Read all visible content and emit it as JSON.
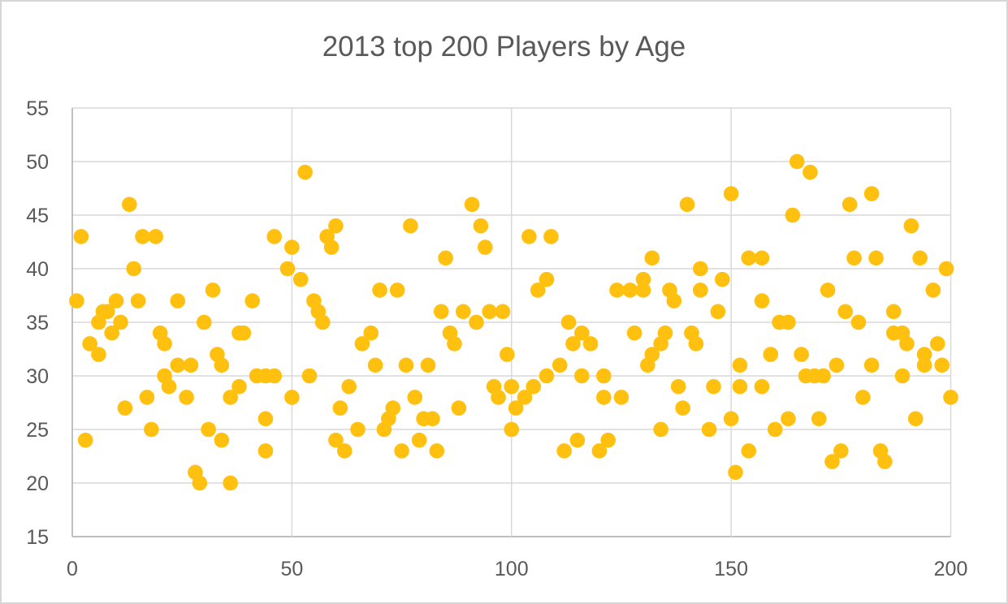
{
  "chart_data": {
    "type": "scatter",
    "title": "2013 top 200 Players by Age",
    "xlabel": "",
    "ylabel": "",
    "xlim": [
      0,
      200
    ],
    "ylim": [
      15,
      55
    ],
    "x_ticks": [
      0,
      50,
      100,
      150,
      200
    ],
    "y_ticks": [
      15,
      20,
      25,
      30,
      35,
      40,
      45,
      50,
      55
    ],
    "grid": true,
    "legend": "none",
    "marker_color": "#FFC010",
    "gridline_color": "#D9D9D9",
    "axis_line_color": "#BFBFBF",
    "text_color": "#595959",
    "points": [
      [
        1,
        37
      ],
      [
        2,
        43
      ],
      [
        3,
        24
      ],
      [
        4,
        33
      ],
      [
        6,
        32
      ],
      [
        6,
        35
      ],
      [
        7,
        36
      ],
      [
        8,
        36
      ],
      [
        9,
        34
      ],
      [
        10,
        37
      ],
      [
        11,
        35
      ],
      [
        12,
        27
      ],
      [
        13,
        46
      ],
      [
        14,
        40
      ],
      [
        15,
        37
      ],
      [
        16,
        43
      ],
      [
        17,
        28
      ],
      [
        18,
        25
      ],
      [
        19,
        43
      ],
      [
        20,
        34
      ],
      [
        21,
        33
      ],
      [
        21,
        30
      ],
      [
        22,
        29
      ],
      [
        24,
        37
      ],
      [
        24,
        31
      ],
      [
        26,
        28
      ],
      [
        27,
        31
      ],
      [
        28,
        21
      ],
      [
        29,
        20
      ],
      [
        30,
        35
      ],
      [
        31,
        25
      ],
      [
        32,
        38
      ],
      [
        33,
        32
      ],
      [
        34,
        31
      ],
      [
        34,
        24
      ],
      [
        36,
        28
      ],
      [
        36,
        20
      ],
      [
        38,
        34
      ],
      [
        38,
        29
      ],
      [
        39,
        34
      ],
      [
        41,
        37
      ],
      [
        42,
        30
      ],
      [
        44,
        30
      ],
      [
        44,
        26
      ],
      [
        44,
        23
      ],
      [
        46,
        30
      ],
      [
        46,
        43
      ],
      [
        49,
        40
      ],
      [
        50,
        42
      ],
      [
        50,
        28
      ],
      [
        52,
        39
      ],
      [
        53,
        49
      ],
      [
        54,
        30
      ],
      [
        55,
        37
      ],
      [
        56,
        36
      ],
      [
        57,
        35
      ],
      [
        58,
        43
      ],
      [
        59,
        42
      ],
      [
        60,
        44
      ],
      [
        60,
        24
      ],
      [
        61,
        27
      ],
      [
        62,
        23
      ],
      [
        63,
        29
      ],
      [
        65,
        25
      ],
      [
        66,
        33
      ],
      [
        68,
        34
      ],
      [
        69,
        31
      ],
      [
        70,
        38
      ],
      [
        71,
        25
      ],
      [
        72,
        26
      ],
      [
        73,
        27
      ],
      [
        74,
        38
      ],
      [
        75,
        23
      ],
      [
        76,
        31
      ],
      [
        77,
        44
      ],
      [
        78,
        28
      ],
      [
        79,
        24
      ],
      [
        80,
        26
      ],
      [
        81,
        31
      ],
      [
        82,
        26
      ],
      [
        83,
        23
      ],
      [
        84,
        36
      ],
      [
        85,
        41
      ],
      [
        86,
        34
      ],
      [
        87,
        33
      ],
      [
        88,
        27
      ],
      [
        89,
        36
      ],
      [
        91,
        46
      ],
      [
        92,
        35
      ],
      [
        93,
        44
      ],
      [
        94,
        42
      ],
      [
        95,
        36
      ],
      [
        96,
        29
      ],
      [
        97,
        28
      ],
      [
        98,
        36
      ],
      [
        99,
        32
      ],
      [
        100,
        29
      ],
      [
        100,
        25
      ],
      [
        101,
        27
      ],
      [
        103,
        28
      ],
      [
        104,
        43
      ],
      [
        105,
        29
      ],
      [
        106,
        38
      ],
      [
        108,
        39
      ],
      [
        108,
        30
      ],
      [
        109,
        43
      ],
      [
        111,
        31
      ],
      [
        112,
        23
      ],
      [
        113,
        35
      ],
      [
        114,
        33
      ],
      [
        115,
        24
      ],
      [
        116,
        34
      ],
      [
        116,
        30
      ],
      [
        118,
        33
      ],
      [
        120,
        23
      ],
      [
        121,
        30
      ],
      [
        121,
        28
      ],
      [
        122,
        24
      ],
      [
        124,
        38
      ],
      [
        125,
        28
      ],
      [
        127,
        38
      ],
      [
        128,
        34
      ],
      [
        130,
        39
      ],
      [
        130,
        38
      ],
      [
        131,
        31
      ],
      [
        132,
        41
      ],
      [
        132,
        32
      ],
      [
        134,
        33
      ],
      [
        134,
        25
      ],
      [
        135,
        34
      ],
      [
        136,
        38
      ],
      [
        137,
        37
      ],
      [
        138,
        29
      ],
      [
        139,
        27
      ],
      [
        140,
        46
      ],
      [
        141,
        34
      ],
      [
        142,
        33
      ],
      [
        143,
        40
      ],
      [
        143,
        38
      ],
      [
        145,
        25
      ],
      [
        146,
        29
      ],
      [
        147,
        36
      ],
      [
        148,
        39
      ],
      [
        150,
        47
      ],
      [
        150,
        26
      ],
      [
        151,
        21
      ],
      [
        152,
        31
      ],
      [
        152,
        29
      ],
      [
        154,
        41
      ],
      [
        154,
        23
      ],
      [
        157,
        41
      ],
      [
        157,
        37
      ],
      [
        157,
        29
      ],
      [
        159,
        32
      ],
      [
        160,
        25
      ],
      [
        161,
        35
      ],
      [
        163,
        35
      ],
      [
        163,
        26
      ],
      [
        164,
        45
      ],
      [
        165,
        50
      ],
      [
        166,
        32
      ],
      [
        167,
        30
      ],
      [
        168,
        49
      ],
      [
        169,
        30
      ],
      [
        170,
        26
      ],
      [
        171,
        30
      ],
      [
        172,
        38
      ],
      [
        173,
        22
      ],
      [
        174,
        31
      ],
      [
        175,
        23
      ],
      [
        176,
        36
      ],
      [
        177,
        46
      ],
      [
        178,
        41
      ],
      [
        179,
        35
      ],
      [
        180,
        28
      ],
      [
        182,
        47
      ],
      [
        182,
        31
      ],
      [
        183,
        41
      ],
      [
        184,
        23
      ],
      [
        185,
        22
      ],
      [
        187,
        36
      ],
      [
        187,
        34
      ],
      [
        189,
        34
      ],
      [
        189,
        30
      ],
      [
        190,
        33
      ],
      [
        191,
        44
      ],
      [
        192,
        26
      ],
      [
        193,
        41
      ],
      [
        194,
        32
      ],
      [
        194,
        31
      ],
      [
        196,
        38
      ],
      [
        197,
        33
      ],
      [
        198,
        31
      ],
      [
        199,
        40
      ],
      [
        200,
        28
      ]
    ]
  }
}
